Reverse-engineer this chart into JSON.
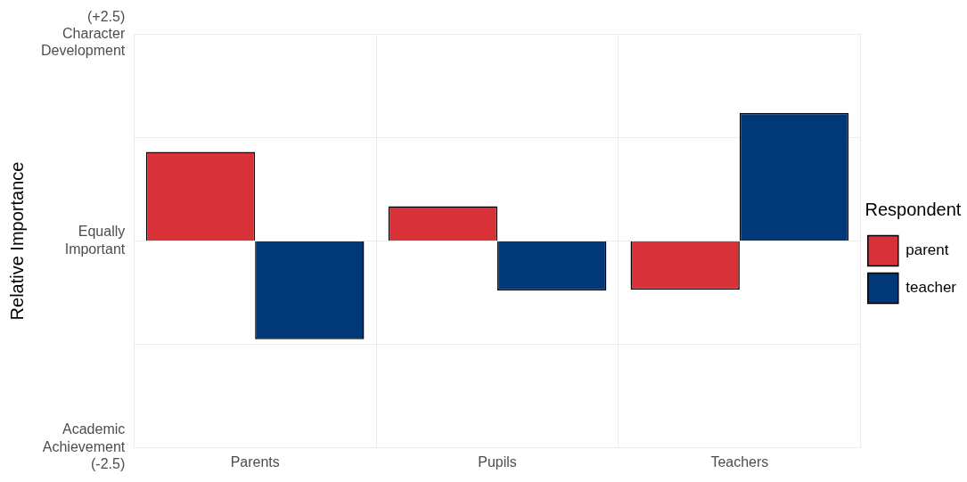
{
  "chart_data": {
    "type": "bar",
    "ylabel": "Relative Importance",
    "legend_title": "Respondent",
    "legend": "right",
    "grid": true,
    "categories": [
      "Parents",
      "Pupils",
      "Teachers"
    ],
    "series": [
      {
        "name": "parent",
        "color": "#d83238",
        "values": [
          1.08,
          0.42,
          -0.59
        ]
      },
      {
        "name": "teacher",
        "color": "#003878",
        "values": [
          -1.19,
          -0.6,
          1.55
        ]
      }
    ],
    "ylim": [
      -2.5,
      2.5
    ],
    "yticks": [
      {
        "value": -2.5,
        "label": "Academic\nAchievement\n(-2.5)"
      },
      {
        "value": -1.25,
        "label": null
      },
      {
        "value": 0,
        "label": "Equally\nImportant"
      },
      {
        "value": 1.25,
        "label": null
      },
      {
        "value": 2.5,
        "label": "(+2.5)\nCharacter\nDevelopment"
      }
    ]
  }
}
